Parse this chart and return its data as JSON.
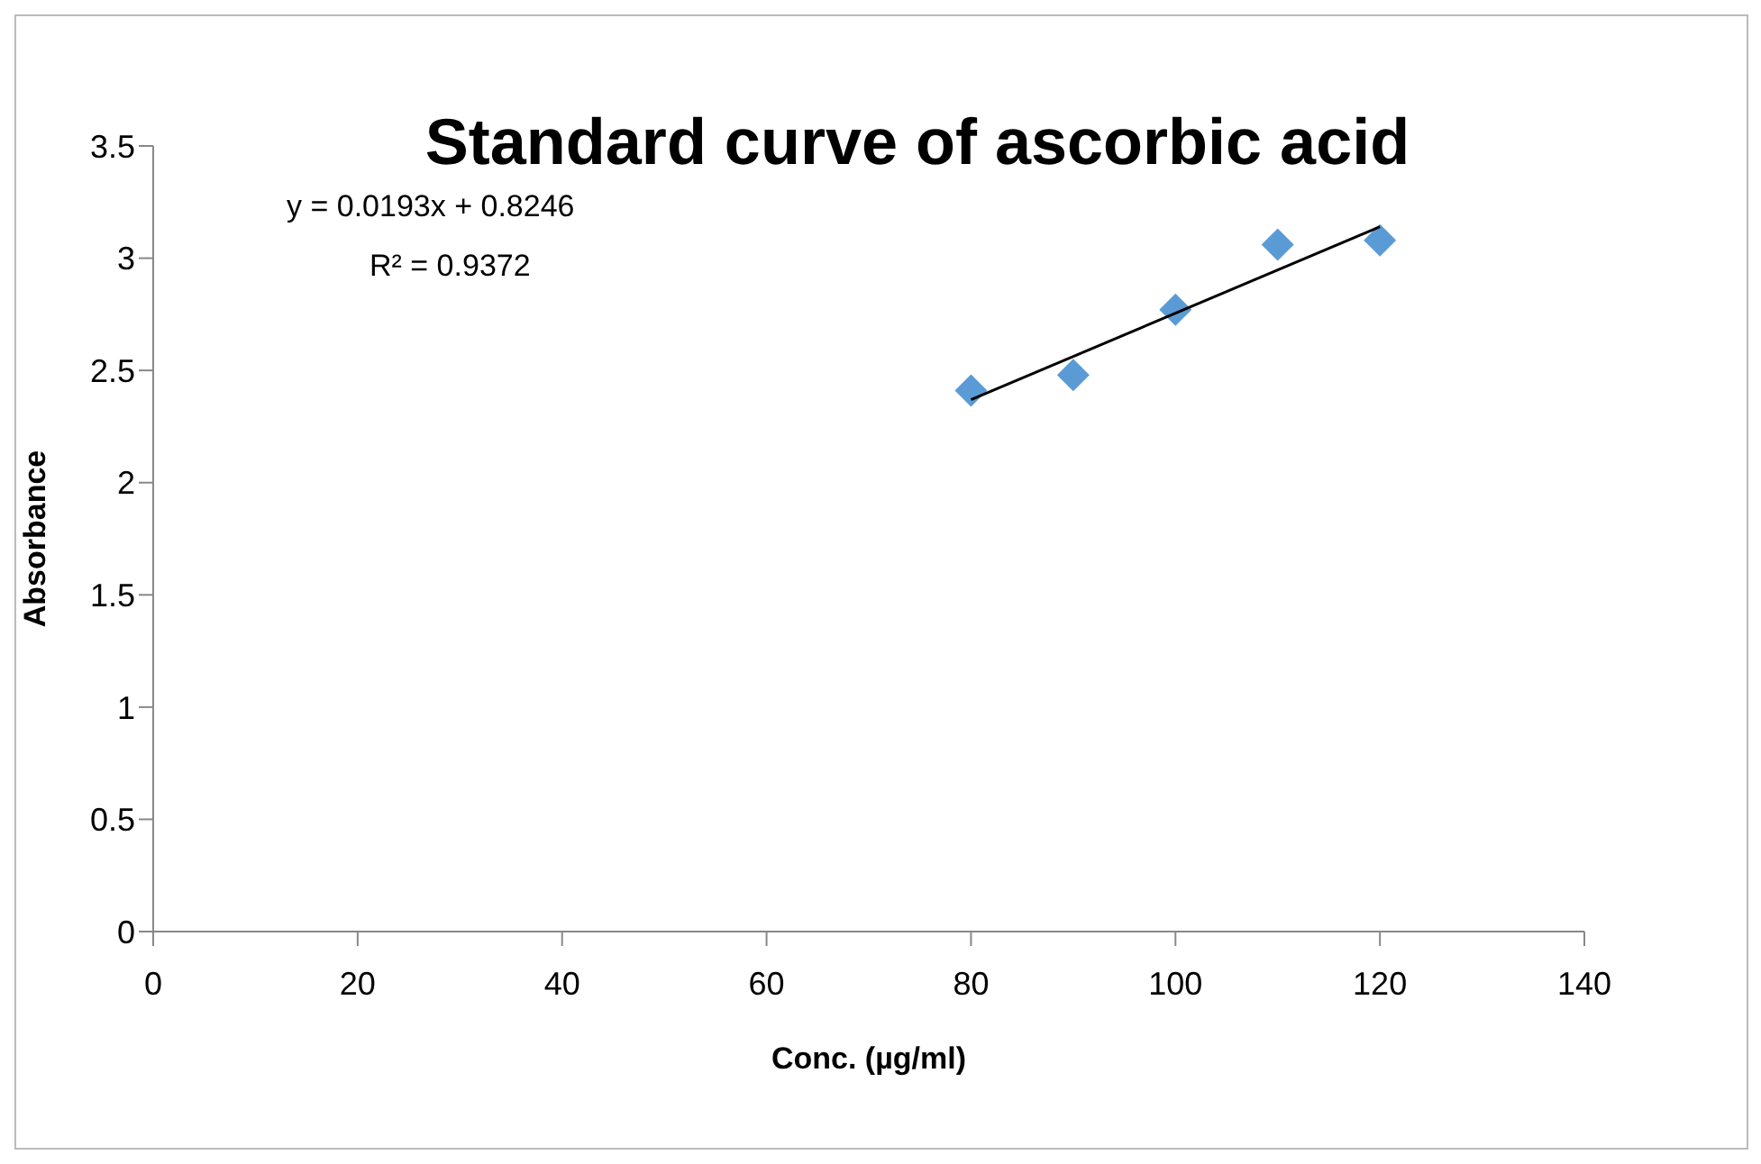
{
  "chart_data": {
    "type": "scatter",
    "title": "Standard curve of ascorbic acid",
    "xlabel": "Conc. (µg/ml)",
    "ylabel": "Absorbance",
    "annotations": [
      "y = 0.0193x + 0.8246",
      "R² = 0.9372"
    ],
    "series": [
      {
        "color": "#5b9bd5",
        "marker": "diamond",
        "x": [
          80,
          90,
          100,
          110,
          120
        ],
        "values": [
          2.41,
          2.48,
          2.77,
          3.06,
          3.08
        ]
      },
      {
        "type": "line",
        "color": "#000000",
        "marker": "none",
        "x": [
          80,
          120
        ],
        "values": [
          2.37,
          3.14
        ]
      }
    ],
    "xlim": [
      0,
      140
    ],
    "xticks": [
      0,
      20,
      40,
      60,
      80,
      100,
      120,
      140
    ],
    "ylim": [
      0,
      3.5
    ],
    "yticks": [
      0,
      0.5,
      1,
      1.5,
      2,
      2.5,
      3,
      3.5
    ],
    "grid": false,
    "legend": false
  }
}
